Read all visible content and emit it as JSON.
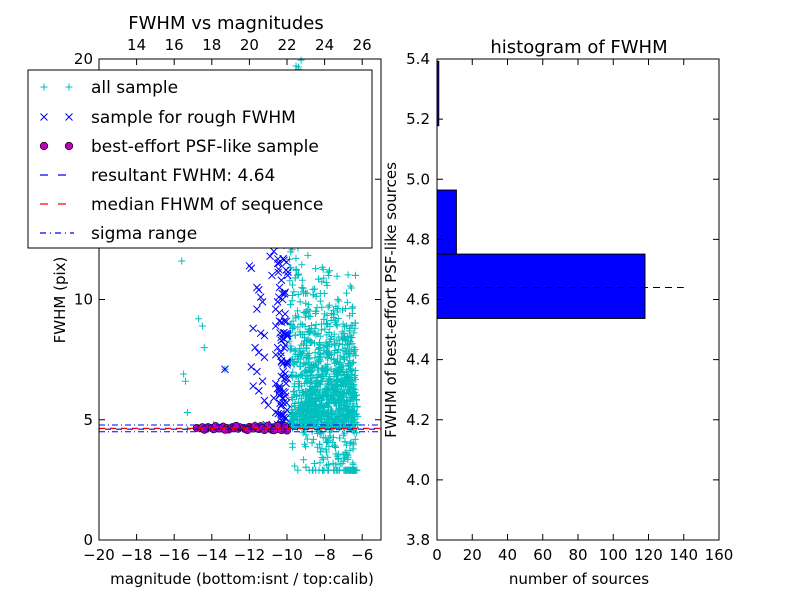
{
  "colors": {
    "all_sample": "#00bfbf",
    "rough_sample": "#0000ff",
    "best_marker": "#bf00bf",
    "resultant_line": "#0000ff",
    "median_line": "#ff0000",
    "sigma_line": "#0000ff",
    "histogram_bar": "#0000ff"
  },
  "chart_data": [
    {
      "type": "scatter",
      "title": "FWHM vs magnitudes",
      "xlabel": "magnitude (bottom:isnt / top:calib)",
      "ylabel": "FWHM (pix)",
      "xlim": [
        -20,
        -5
      ],
      "ylim": [
        0,
        20
      ],
      "x_ticks": [
        "−20",
        "−18",
        "−16",
        "−14",
        "−12",
        "−10",
        "−8",
        "−6"
      ],
      "y_ticks": [
        "0",
        "5",
        "10",
        "15",
        "20"
      ],
      "top_axis": {
        "range": [
          12,
          27
        ],
        "ticks": [
          "14",
          "16",
          "18",
          "20",
          "22",
          "24",
          "26"
        ]
      },
      "legend": {
        "placement": "upper-left",
        "entries": [
          "all sample",
          "sample for rough FWHM",
          "best-effort PSF-like sample",
          "resultant FWHM: 4.64",
          "median FHWM of sequence",
          "sigma range"
        ]
      },
      "series": [
        {
          "name": "all sample",
          "marker": "+",
          "points": [
            [
              -15.6,
              11.6
            ],
            [
              -15.5,
              6.9
            ],
            [
              -15.4,
              6.6
            ],
            [
              -15.3,
              5.3
            ],
            [
              -15.3,
              4.6
            ],
            [
              -14.7,
              9.2
            ],
            [
              -14.5,
              8.9
            ],
            [
              -14.4,
              8.0
            ],
            [
              -14.3,
              4.7
            ],
            [
              -13.9,
              4.8
            ],
            [
              -13.3,
              7.1
            ],
            [
              -12.7,
              4.7
            ],
            [
              -12.0,
              4.6
            ],
            [
              -11.7,
              4.8
            ],
            [
              -11.4,
              4.6
            ],
            [
              -11.2,
              4.7
            ],
            [
              -10.9,
              4.7
            ],
            [
              -10.7,
              4.6
            ],
            [
              -10.5,
              4.7
            ],
            [
              -10.3,
              4.9
            ],
            [
              -10.1,
              4.6
            ]
          ],
          "cloud": {
            "x_range": [
              -10.0,
              -6.3
            ],
            "y_range": [
              2.9,
              20
            ],
            "peak_x": -7.8,
            "peak_y": 6.8
          }
        },
        {
          "name": "sample for rough FWHM",
          "marker": "x",
          "points": [
            [
              -13.3,
              7.1
            ],
            [
              -12.0,
              11.4
            ],
            [
              -11.9,
              11.3
            ],
            [
              -11.6,
              10.5
            ],
            [
              -11.5,
              10.4
            ],
            [
              -11.4,
              10.1
            ],
            [
              -11.3,
              9.9
            ],
            [
              -11.6,
              9.6
            ],
            [
              -11.8,
              8.8
            ],
            [
              -11.4,
              8.6
            ],
            [
              -11.2,
              8.5
            ],
            [
              -11.7,
              8.0
            ],
            [
              -11.5,
              7.8
            ],
            [
              -11.2,
              7.6
            ],
            [
              -11.9,
              7.2
            ],
            [
              -11.6,
              7.0
            ],
            [
              -11.3,
              6.6
            ],
            [
              -11.8,
              6.4
            ],
            [
              -11.5,
              6.2
            ],
            [
              -11.2,
              5.8
            ],
            [
              -11.0,
              5.6
            ],
            [
              -10.6,
              5.3
            ],
            [
              -10.3,
              5.2
            ],
            [
              -10.9,
              11.8
            ],
            [
              -10.7,
              12.0
            ],
            [
              -10.4,
              12.6
            ],
            [
              -10.2,
              11.7
            ],
            [
              -10.3,
              10.8
            ],
            [
              -10.1,
              10.3
            ],
            [
              -10.6,
              9.6
            ],
            [
              -10.4,
              9.1
            ],
            [
              -10.2,
              8.6
            ],
            [
              -10.5,
              8.0
            ],
            [
              -10.3,
              7.4
            ],
            [
              -10.1,
              6.9
            ],
            [
              -10.6,
              6.5
            ],
            [
              -10.4,
              6.0
            ],
            [
              -10.2,
              5.7
            ],
            [
              -10.5,
              9.9
            ],
            [
              -10.1,
              9.4
            ],
            [
              -10.3,
              8.3
            ],
            [
              -10.6,
              7.7
            ],
            [
              -10.2,
              7.0
            ],
            [
              -10.4,
              6.2
            ],
            [
              -10.7,
              5.9
            ],
            [
              -10.0,
              5.4
            ],
            [
              -10.2,
              4.9
            ],
            [
              -10.5,
              4.8
            ],
            [
              -11.1,
              4.8
            ],
            [
              -10.8,
              11.0
            ],
            [
              -10.5,
              11.5
            ],
            [
              -10.2,
              12.9
            ],
            [
              -10.4,
              10.5
            ],
            [
              -10.6,
              8.9
            ],
            [
              -10.1,
              8.1
            ],
            [
              -10.3,
              6.8
            ],
            [
              -10.5,
              6.3
            ],
            [
              -10.2,
              5.2
            ]
          ],
          "cloud": {
            "x_range": [
              -10.9,
              -9.9
            ],
            "y_range": [
              4.6,
              13
            ]
          }
        },
        {
          "name": "best-effort PSF-like sample",
          "marker": "o",
          "points": [
            [
              -14.8,
              4.66
            ],
            [
              -14.6,
              4.64
            ],
            [
              -14.5,
              4.69
            ],
            [
              -14.3,
              4.62
            ],
            [
              -14.2,
              4.7
            ],
            [
              -14.0,
              4.65
            ],
            [
              -13.9,
              4.6
            ],
            [
              -13.7,
              4.68
            ],
            [
              -13.6,
              4.63
            ],
            [
              -13.4,
              4.72
            ],
            [
              -13.2,
              4.66
            ],
            [
              -13.1,
              4.59
            ],
            [
              -12.9,
              4.7
            ],
            [
              -12.8,
              4.64
            ],
            [
              -12.6,
              4.62
            ],
            [
              -12.5,
              4.69
            ],
            [
              -12.3,
              4.66
            ],
            [
              -12.2,
              4.6
            ],
            [
              -12.0,
              4.71
            ],
            [
              -11.9,
              4.65
            ],
            [
              -11.8,
              4.63
            ],
            [
              -11.6,
              4.68
            ],
            [
              -11.5,
              4.61
            ],
            [
              -11.4,
              4.74
            ],
            [
              -11.3,
              4.66
            ],
            [
              -11.1,
              4.62
            ],
            [
              -11.0,
              4.7
            ],
            [
              -10.9,
              4.64
            ],
            [
              -10.8,
              4.58
            ],
            [
              -10.7,
              4.69
            ],
            [
              -10.6,
              4.65
            ],
            [
              -10.5,
              4.61
            ],
            [
              -10.4,
              4.72
            ],
            [
              -10.3,
              4.66
            ],
            [
              -10.2,
              4.59
            ],
            [
              -10.1,
              4.68
            ],
            [
              -10.0,
              4.63
            ],
            [
              -10.0,
              4.55
            ],
            [
              -10.1,
              4.74
            ],
            [
              -10.3,
              4.57
            ],
            [
              -10.5,
              4.75
            ],
            [
              -10.7,
              4.56
            ],
            [
              -11.0,
              4.76
            ],
            [
              -11.2,
              4.57
            ],
            [
              -11.7,
              4.74
            ],
            [
              -12.1,
              4.57
            ],
            [
              -12.7,
              4.75
            ],
            [
              -13.3,
              4.58
            ],
            [
              -13.8,
              4.74
            ],
            [
              -14.4,
              4.58
            ]
          ]
        },
        {
          "name": "resultant FWHM: 4.64",
          "line_style": "dashed",
          "y": 4.64
        },
        {
          "name": "median FHWM of sequence",
          "line_style": "dashed",
          "y": 4.64
        },
        {
          "name": "sigma range",
          "line_style": "dash-dot",
          "y_values": [
            4.5,
            4.78
          ]
        }
      ]
    },
    {
      "type": "bar",
      "orientation": "horizontal",
      "title": "histogram of FWHM",
      "xlabel": "number of sources",
      "ylabel": "FWHM of best-effort PSF-like sources",
      "xlim": [
        0,
        160
      ],
      "ylim": [
        3.8,
        5.4
      ],
      "x_ticks": [
        "0",
        "20",
        "40",
        "60",
        "80",
        "100",
        "120",
        "140",
        "160"
      ],
      "y_ticks": [
        "3.8",
        "4.0",
        "4.2",
        "4.4",
        "4.6",
        "4.8",
        "5.0",
        "5.2",
        "5.4"
      ],
      "bins": [
        {
          "y0": 4.537,
          "y1": 4.751,
          "count": 118
        },
        {
          "y0": 4.751,
          "y1": 4.964,
          "count": 11
        },
        {
          "y0": 4.964,
          "y1": 5.178,
          "count": 0
        },
        {
          "y0": 5.178,
          "y1": 5.392,
          "count": 1
        }
      ],
      "reference_line": {
        "y": 4.64,
        "x_range": [
          0,
          140
        ],
        "line_style": "dashed"
      }
    }
  ]
}
